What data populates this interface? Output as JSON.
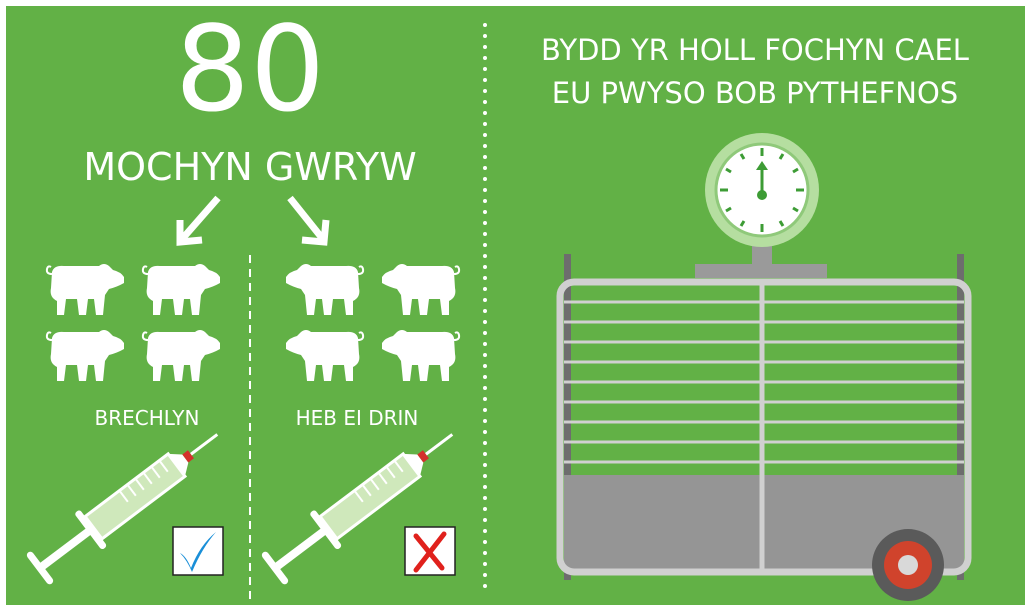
{
  "headline": {
    "number": 80,
    "label": "MOCHYN GWRYW"
  },
  "groups": [
    {
      "label": "BRECHLYN"
    },
    {
      "label": "HEB EI DRIN"
    }
  ],
  "right": {
    "lines": [
      "BYDD YR HOLL FOCHYN CAEL",
      "EU PWYSO BOB PYTHEFNOS"
    ]
  }
}
